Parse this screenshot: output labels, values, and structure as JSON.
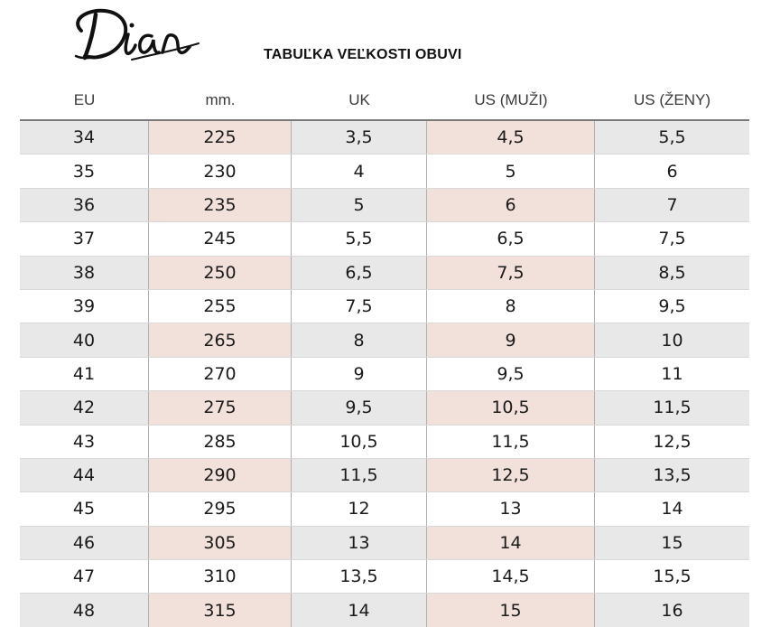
{
  "brand": {
    "logo_text": "Dian"
  },
  "title": "TABUĽKA VEĽKOSTI OBUVI",
  "colors": {
    "row_shade": "#e8e8e8",
    "accent_shade": "#f2e0da",
    "rule": "#7a7a7a"
  },
  "table": {
    "headers": [
      "EU",
      "mm.",
      "UK",
      "US (MUŽI)",
      "US (ŽENY)"
    ],
    "rows": [
      [
        "34",
        "225",
        "3,5",
        "4,5",
        "5,5"
      ],
      [
        "35",
        "230",
        "4",
        "5",
        "6"
      ],
      [
        "36",
        "235",
        "5",
        "6",
        "7"
      ],
      [
        "37",
        "245",
        "5,5",
        "6,5",
        "7,5"
      ],
      [
        "38",
        "250",
        "6,5",
        "7,5",
        "8,5"
      ],
      [
        "39",
        "255",
        "7,5",
        "8",
        "9,5"
      ],
      [
        "40",
        "265",
        "8",
        "9",
        "10"
      ],
      [
        "41",
        "270",
        "9",
        "9,5",
        "11"
      ],
      [
        "42",
        "275",
        "9,5",
        "10,5",
        "11,5"
      ],
      [
        "43",
        "285",
        "10,5",
        "11,5",
        "12,5"
      ],
      [
        "44",
        "290",
        "11,5",
        "12,5",
        "13,5"
      ],
      [
        "45",
        "295",
        "12",
        "13",
        "14"
      ],
      [
        "46",
        "305",
        "13",
        "14",
        "15"
      ],
      [
        "47",
        "310",
        "13,5",
        "14,5",
        "15,5"
      ],
      [
        "48",
        "315",
        "14",
        "15",
        "16"
      ]
    ]
  }
}
